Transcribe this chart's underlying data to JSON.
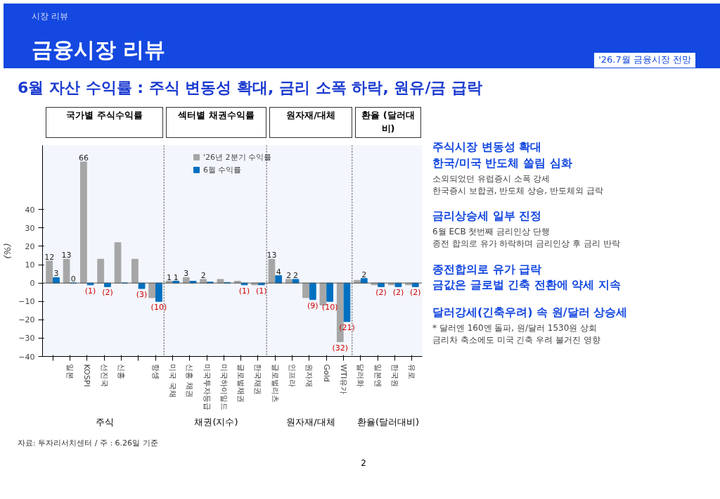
{
  "chart_data": {
    "type": "bar",
    "title": "6월 자산 수익률 : 주식 변동성 확대, 금리 소폭 하락, 원유/금 급락",
    "ylabel": "(%)",
    "categories": [
      null,
      "일본",
      "KOSPI",
      "선진국",
      "신흥",
      null,
      "항셍",
      "미국 국채",
      "신흥 채권",
      "미국투자등급",
      "미국하이일드",
      "글로벌채권",
      "한국채권",
      "글로벌리츠",
      "인프라",
      "원자재",
      "Gold",
      "WTI유가",
      "달러화",
      "일본엔",
      "한국원",
      "유로"
    ],
    "series": [
      {
        "name": "'26년 2분기 수익률",
        "color": "#a6a6a6",
        "values": [
          12,
          13,
          66,
          13,
          22,
          13,
          -8,
          1,
          3,
          2,
          2,
          1,
          -1,
          13,
          2,
          -8,
          -12,
          -32,
          1.5,
          -1,
          -1,
          -1
        ],
        "value_labels": [
          "12",
          "13",
          "66",
          null,
          null,
          null,
          null,
          "1",
          "3",
          "2",
          null,
          null,
          null,
          "13",
          "2",
          null,
          null,
          "(32)",
          null,
          null,
          null,
          null
        ]
      },
      {
        "name": "6월 수익률",
        "color": "#0070c0",
        "values": [
          3,
          0,
          -1,
          -2,
          0,
          -3,
          -10,
          1,
          1,
          0.5,
          0.3,
          -1,
          -1,
          4,
          2,
          -9,
          -10,
          -21,
          2.5,
          -2,
          -2,
          -2
        ],
        "value_labels": [
          "3",
          "0",
          "(1)",
          "(2)",
          null,
          "(3)",
          "(10)",
          "1",
          null,
          null,
          null,
          "(1)",
          "(1)",
          "4",
          "2",
          "(9)",
          "(10)",
          "(21)",
          "2",
          "(2)",
          "(2)",
          "(2)"
        ]
      }
    ],
    "ylim": [
      -40,
      75
    ],
    "yticks": [
      -40,
      -30,
      -20,
      -10,
      0,
      10,
      20,
      30,
      40
    ],
    "grid": false,
    "legend": "top",
    "annotations": [
      "시장 리뷰",
      "금융시장 리뷰",
      "'26.7월 금융시장 전망",
      "국가별 주식수익률",
      "섹터별 채권수익률",
      "원자재/대체",
      "환율 (달러대비)",
      "주식",
      "채권(지수)",
      "원자재/대체",
      "환율(달러대비)",
      "주식시장 변동성 확대\n한국/미국 반도체 쏠림 심화",
      "소외되었던 유럽증시 소폭 강세\n한국증시 보합권, 반도체 상승, 반도체외 급락",
      "금리상승세 일부 진정",
      "6월 ECB 첫번째 금리인상 단행\n종전 합의로 유가 하락하며 금리인상 후 금리 반락",
      "종전합의로 유가 급락\n금값은 글로벌 긴축 전환에 약세 지속",
      "달러강세(긴축우려) 속 원/달러 상승세",
      "* 달러엔 160엔 돌파, 원/달러 1530원 상회\n금리차 축소에도 미국 긴축 우려 불거진 영향",
      "자료: 투자리서치센터 / 주 : 6.26일 기준",
      "2"
    ]
  }
}
